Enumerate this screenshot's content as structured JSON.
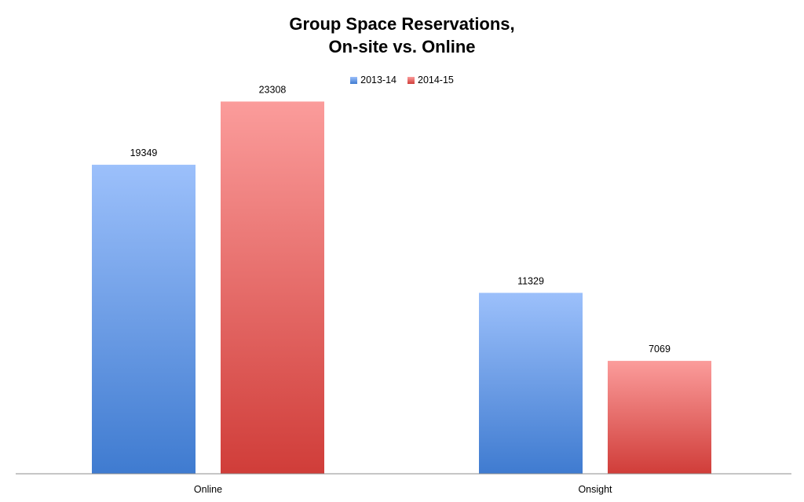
{
  "chart_data": {
    "type": "bar",
    "title_lines": [
      "Group Space Reservations,",
      "On-site vs. Online"
    ],
    "categories": [
      "Online",
      "Onsight"
    ],
    "series": [
      {
        "name": "2013-14",
        "values": [
          19349,
          11329
        ],
        "color_top": "#9cc0fb",
        "color_bottom": "#3f7bd0"
      },
      {
        "name": "2014-15",
        "values": [
          23308,
          7069
        ],
        "color_top": "#fb9c9b",
        "color_bottom": "#d03d39"
      }
    ],
    "ylim": [
      0,
      25000
    ],
    "legend_position": "top-center",
    "grid": false,
    "data_labels": true
  }
}
